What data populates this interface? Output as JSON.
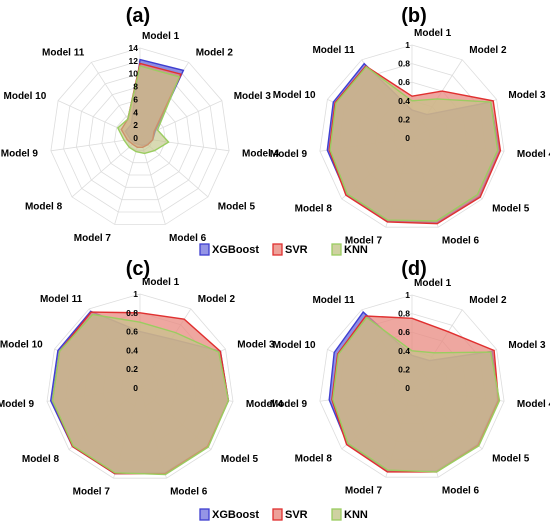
{
  "colors": {
    "XGBoost": "#3f3fd0",
    "SVR": "#e03030",
    "KNN": "#9acd60",
    "fill_xgb": "#7b7be0",
    "fill_svr": "#e88a80",
    "fill_knn": "#c3c68a"
  },
  "chart_data": [
    {
      "type": "radar",
      "title": "(a)",
      "axes": [
        "Model 1",
        "Model 2",
        "Model 3",
        "Model 4",
        "Model 5",
        "Model 6",
        "Model 7",
        "Model 8",
        "Model 9",
        "Model 10",
        "Model 11"
      ],
      "rlim": [
        0,
        14
      ],
      "ticks": [
        "0",
        "2",
        "4",
        "6",
        "8",
        "10",
        "12",
        "14"
      ],
      "legend": null,
      "series": [
        {
          "name": "XGBoost",
          "values": [
            12.2,
            12.5,
            2.6,
            2.0,
            1.5,
            1.2,
            1.0,
            1.2,
            1.5,
            2.5,
            2.5
          ]
        },
        {
          "name": "SVR",
          "values": [
            11.6,
            11.8,
            2.4,
            2.0,
            1.6,
            1.5,
            1.5,
            1.5,
            2.0,
            3.2,
            3.5
          ]
        },
        {
          "name": "KNN",
          "values": [
            11.2,
            11.3,
            3.0,
            4.5,
            3.0,
            2.5,
            2.2,
            2.2,
            2.5,
            3.8,
            3.5
          ]
        }
      ]
    },
    {
      "type": "radar",
      "title": "(b)",
      "axes": [
        "Model 1",
        "Model 2",
        "Model 3",
        "Model 4",
        "Model 5",
        "Model 6",
        "Model 7",
        "Model 8",
        "Model 9",
        "Model 10",
        "Model 11"
      ],
      "rlim": [
        0,
        1
      ],
      "ticks": [
        "0",
        "0.2",
        "0.4",
        "0.6",
        "0.8",
        "1"
      ],
      "legend": [
        "XGBoost",
        "SVR",
        "KNN"
      ],
      "series": [
        {
          "name": "XGBoost",
          "values": [
            0.3,
            0.3,
            0.93,
            0.95,
            0.96,
            0.95,
            0.93,
            0.93,
            0.92,
            0.93,
            0.95
          ]
        },
        {
          "name": "SVR",
          "values": [
            0.45,
            0.6,
            0.96,
            0.96,
            0.97,
            0.96,
            0.94,
            0.94,
            0.9,
            0.91,
            0.92
          ]
        },
        {
          "name": "KNN",
          "values": [
            0.4,
            0.5,
            0.93,
            0.93,
            0.93,
            0.93,
            0.92,
            0.92,
            0.89,
            0.9,
            0.91
          ]
        }
      ]
    },
    {
      "type": "radar",
      "title": "(c)",
      "axes": [
        "Model 1",
        "Model 2",
        "Model 3",
        "Model 4",
        "Model 5",
        "Model 6",
        "Model 7",
        "Model 8",
        "Model 9",
        "Model 10",
        "Model 11"
      ],
      "rlim": [
        0,
        1
      ],
      "ticks": [
        "0",
        "0.2",
        "0.4",
        "0.6",
        "0.8",
        "1"
      ],
      "legend": null,
      "series": [
        {
          "name": "XGBoost",
          "values": [
            0.6,
            0.62,
            0.94,
            0.95,
            0.95,
            0.94,
            0.95,
            0.95,
            0.96,
            0.96,
            0.97
          ]
        },
        {
          "name": "SVR",
          "values": [
            0.8,
            0.87,
            0.94,
            0.95,
            0.95,
            0.95,
            0.95,
            0.95,
            0.94,
            0.94,
            0.96
          ]
        },
        {
          "name": "KNN",
          "values": [
            0.7,
            0.7,
            0.92,
            0.95,
            0.96,
            0.96,
            0.94,
            0.94,
            0.94,
            0.94,
            0.93
          ]
        }
      ]
    },
    {
      "type": "radar",
      "title": "(d)",
      "axes": [
        "Model 1",
        "Model 2",
        "Model 3",
        "Model 4",
        "Model 5",
        "Model 6",
        "Model 7",
        "Model 8",
        "Model 9",
        "Model 10",
        "Model 11"
      ],
      "rlim": [
        0,
        1
      ],
      "ticks": [
        "0",
        "0.2",
        "0.4",
        "0.6",
        "0.8",
        "1"
      ],
      "legend": [
        "XGBoost",
        "SVR",
        "KNN"
      ],
      "series": [
        {
          "name": "XGBoost",
          "values": [
            0.35,
            0.35,
            0.95,
            0.93,
            0.93,
            0.93,
            0.93,
            0.92,
            0.9,
            0.92,
            0.97
          ]
        },
        {
          "name": "SVR",
          "values": [
            0.75,
            0.72,
            0.97,
            0.94,
            0.94,
            0.94,
            0.94,
            0.93,
            0.87,
            0.88,
            0.92
          ]
        },
        {
          "name": "KNN",
          "values": [
            0.4,
            0.45,
            0.93,
            0.95,
            0.95,
            0.94,
            0.92,
            0.91,
            0.86,
            0.87,
            0.9
          ]
        }
      ]
    }
  ]
}
